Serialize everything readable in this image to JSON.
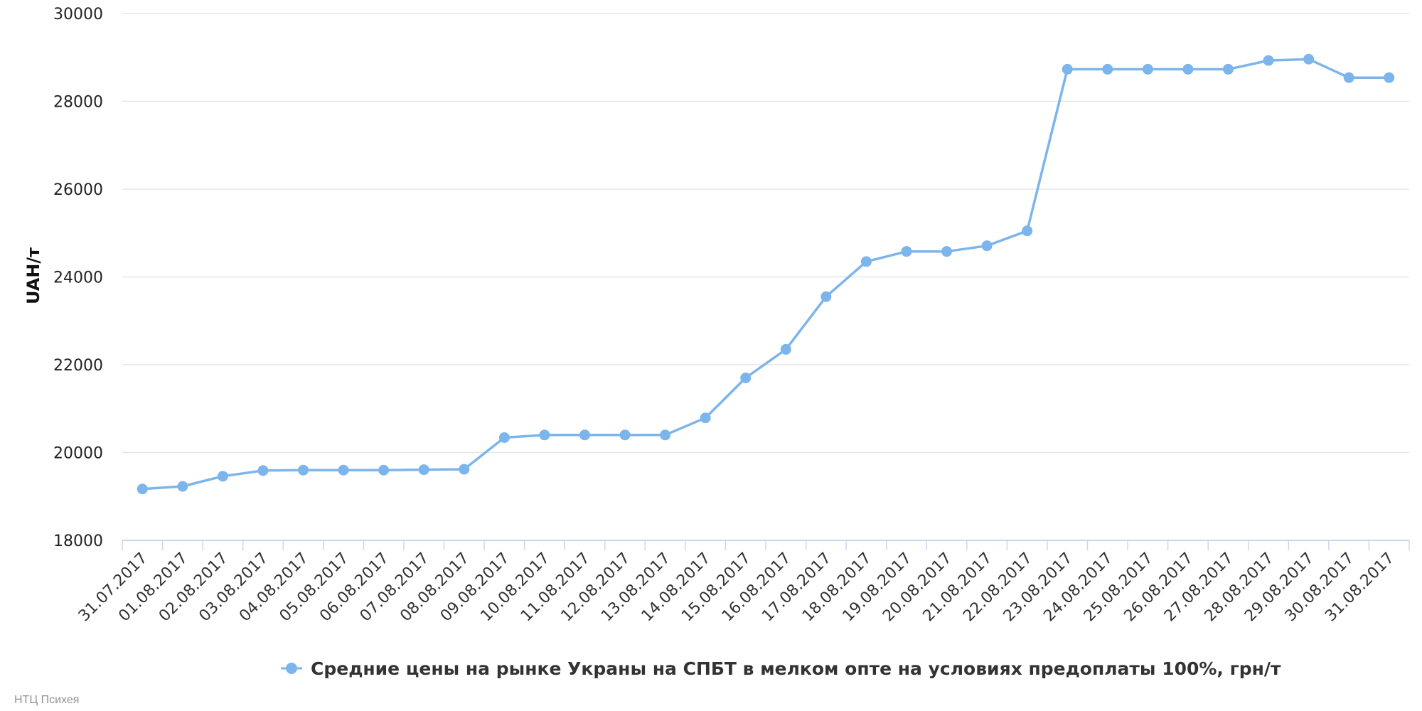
{
  "chart_data": {
    "type": "line",
    "title": "",
    "ylabel": "UAH/т",
    "xlabel": "",
    "ylim": [
      18000,
      30000
    ],
    "yticks": [
      18000,
      20000,
      22000,
      24000,
      26000,
      28000,
      30000
    ],
    "grid": true,
    "legend_position": "bottom-center",
    "categories": [
      "31.07.2017",
      "01.08.2017",
      "02.08.2017",
      "03.08.2017",
      "04.08.2017",
      "05.08.2017",
      "06.08.2017",
      "07.08.2017",
      "08.08.2017",
      "09.08.2017",
      "10.08.2017",
      "11.08.2017",
      "12.08.2017",
      "13.08.2017",
      "14.08.2017",
      "15.08.2017",
      "16.08.2017",
      "17.08.2017",
      "18.08.2017",
      "19.08.2017",
      "20.08.2017",
      "21.08.2017",
      "22.08.2017",
      "23.08.2017",
      "24.08.2017",
      "25.08.2017",
      "26.08.2017",
      "27.08.2017",
      "28.08.2017",
      "29.08.2017",
      "30.08.2017",
      "31.08.2017"
    ],
    "series": [
      {
        "name": "Средние цены на рынке Украны на СПБТ в мелком опте на условиях предоплаты 100%, грн/т",
        "color": "#7cb5ec",
        "values": [
          19170,
          19230,
          19460,
          19590,
          19600,
          19600,
          19600,
          19610,
          19620,
          20340,
          20400,
          20400,
          20400,
          20400,
          20790,
          21700,
          22350,
          23550,
          24350,
          24580,
          24580,
          24710,
          25050,
          28730,
          28730,
          28730,
          28730,
          28730,
          28930,
          28960,
          28540,
          28540
        ]
      }
    ]
  },
  "credits": "НТЦ Психея",
  "colors": {
    "series": "#7cb5ec",
    "grid": "#e6e6e6",
    "axis": "#ccd6eb"
  }
}
